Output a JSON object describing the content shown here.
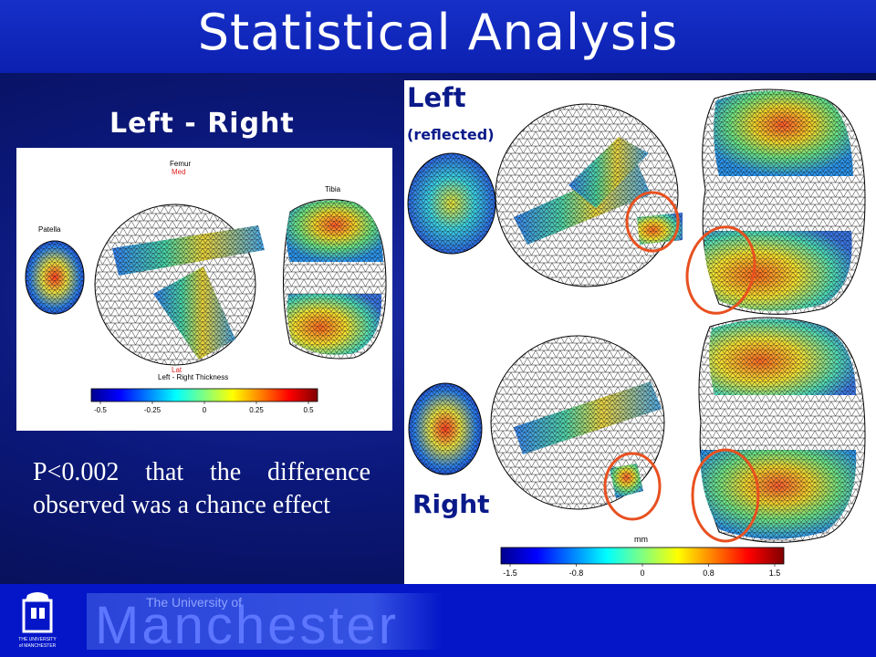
{
  "slide_title": "Statistical Analysis",
  "left_panel": {
    "heading": "Left - Right",
    "figure": {
      "femur_label": "Femur",
      "med_label": "Med",
      "lat_label": "Lat",
      "patella_label": "Patella",
      "tibia_label": "Tibia",
      "colorbar_title": "Left - Right Thickness",
      "colorbar_ticks": [
        "-0.5",
        "-0.25",
        "0",
        "0.25",
        "0.5"
      ]
    },
    "statement": "P<0.002 that the difference observed was a chance effect"
  },
  "right_panel": {
    "left_label": "Left",
    "reflected_label": "(reflected)",
    "right_label": "Right",
    "colorbar_unit": "mm",
    "colorbar_ticks": [
      "-1.5",
      "-0.8",
      "0",
      "0.8",
      "1.5"
    ],
    "highlight_color": "#e85020"
  },
  "footer": {
    "university_small": "The University of",
    "university_big": "Manchester",
    "crest_caption_1": "THE UNIVERSITY",
    "crest_caption_2": "of MANCHESTER"
  }
}
